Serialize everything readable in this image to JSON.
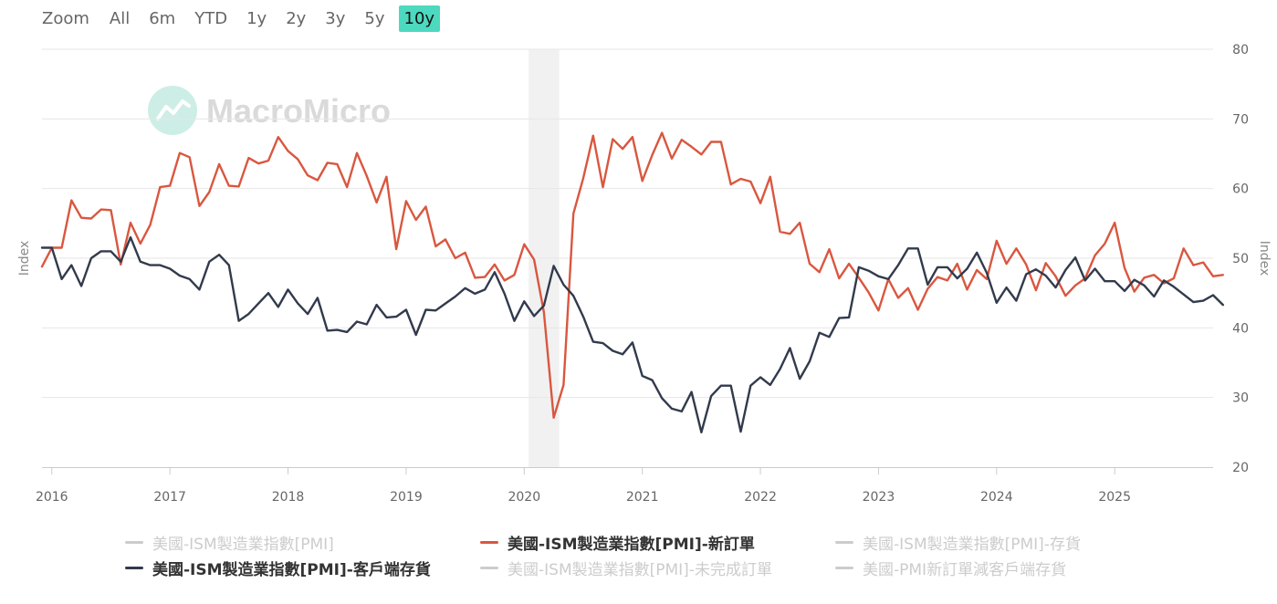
{
  "zoom": {
    "label": "Zoom",
    "buttons": [
      "All",
      "6m",
      "YTD",
      "1y",
      "2y",
      "3y",
      "5y",
      "10y"
    ],
    "active": "10y"
  },
  "watermark": "MacroMicro",
  "colors": {
    "new_orders": "#d9573f",
    "customer_inventories": "#323a4c",
    "recession_band": "#e6e6e6",
    "grid": "#e6e6e6",
    "hidden_legend": "#cccccc",
    "zoom_active": "#4dd9c0"
  },
  "chart_data": {
    "type": "line",
    "x_start": "2015-12",
    "frequency": "monthly",
    "xlim": [
      "2015-12",
      "2025-11"
    ],
    "x_tick_labels": [
      "2016",
      "2017",
      "2018",
      "2019",
      "2020",
      "2021",
      "2022",
      "2023",
      "2024",
      "2025"
    ],
    "y_left": {
      "label": "Index",
      "ticks": []
    },
    "y_right": {
      "label": "Index",
      "ticks": [
        "20",
        "30",
        "40",
        "50",
        "60",
        "70",
        "80"
      ]
    },
    "ylim": [
      20,
      80
    ],
    "grid": true,
    "recession_band": [
      "2020-02",
      "2020-04"
    ],
    "series": [
      {
        "key": "new_orders",
        "name": "美國-ISM製造業指數[PMI]-新訂單",
        "visible": true,
        "values": [
          48.8,
          51.5,
          51.5,
          58.3,
          55.8,
          55.7,
          57.0,
          56.9,
          49.1,
          55.1,
          52.1,
          54.8,
          60.2,
          60.4,
          65.1,
          64.5,
          57.5,
          59.5,
          63.5,
          60.4,
          60.3,
          64.4,
          63.6,
          64.0,
          67.4,
          65.4,
          64.2,
          61.9,
          61.2,
          63.7,
          63.5,
          60.2,
          65.1,
          61.8,
          58.0,
          61.7,
          51.3,
          58.2,
          55.5,
          57.4,
          51.7,
          52.7,
          50.0,
          50.8,
          47.2,
          47.3,
          49.1,
          46.8,
          47.6,
          52.0,
          49.8,
          42.2,
          27.1,
          31.8,
          56.4,
          61.5,
          67.6,
          60.2,
          67.1,
          65.7,
          67.4,
          61.1,
          64.8,
          68.0,
          64.3,
          67.0,
          66.0,
          64.9,
          66.7,
          66.7,
          60.6,
          61.4,
          61.0,
          57.9,
          61.7,
          53.8,
          53.5,
          55.1,
          49.2,
          48.0,
          51.3,
          47.1,
          49.2,
          47.2,
          45.1,
          42.5,
          47.0,
          44.3,
          45.7,
          42.6,
          45.6,
          47.3,
          46.8,
          49.2,
          45.5,
          48.3,
          47.0,
          52.5,
          49.2,
          51.4,
          49.1,
          45.4,
          49.3,
          47.4,
          44.6,
          46.1,
          47.1,
          50.4,
          52.1,
          55.1,
          48.6,
          45.2,
          47.2,
          47.6,
          46.4,
          47.1,
          51.4,
          49.0,
          49.4,
          47.4,
          47.6
        ]
      },
      {
        "key": "customer_inventories",
        "name": "美國-ISM製造業指數[PMI]-客戶端存貨",
        "visible": true,
        "values": [
          51.5,
          51.5,
          47.0,
          49.0,
          46.0,
          50.0,
          51.0,
          51.0,
          49.5,
          53.0,
          49.5,
          49.0,
          49.0,
          48.5,
          47.5,
          47.0,
          45.5,
          49.5,
          50.5,
          49.0,
          41.0,
          42.0,
          43.5,
          45.0,
          43.0,
          45.5,
          43.5,
          42.0,
          44.3,
          39.6,
          39.7,
          39.4,
          40.9,
          40.5,
          43.3,
          41.5,
          41.6,
          42.6,
          39.0,
          42.6,
          42.5,
          43.5,
          44.5,
          45.7,
          44.9,
          45.5,
          48.0,
          44.9,
          41.0,
          43.8,
          41.7,
          43.2,
          48.9,
          46.2,
          44.6,
          41.6,
          38.0,
          37.8,
          36.7,
          36.2,
          37.9,
          33.1,
          32.5,
          29.9,
          28.4,
          28.0,
          30.8,
          25.0,
          30.2,
          31.7,
          31.7,
          25.1,
          31.7,
          32.9,
          31.8,
          34.1,
          37.1,
          32.7,
          35.2,
          39.3,
          38.7,
          41.4,
          41.5,
          48.7,
          48.2,
          47.4,
          47.0,
          49.0,
          51.4,
          51.4,
          46.2,
          48.7,
          48.7,
          47.1,
          48.5,
          50.8,
          47.9,
          43.6,
          45.8,
          43.9,
          47.7,
          48.4,
          47.5,
          45.8,
          48.3,
          50.1,
          46.8,
          48.5,
          46.7,
          46.7,
          45.3,
          46.9,
          46.1,
          44.5,
          46.8,
          45.9,
          44.8,
          43.7,
          43.9,
          44.7,
          43.3
        ]
      },
      {
        "key": "pmi",
        "name": "美國-ISM製造業指數[PMI]",
        "visible": false
      },
      {
        "key": "inventories",
        "name": "美國-ISM製造業指數[PMI]-存貨",
        "visible": false
      },
      {
        "key": "backlog",
        "name": "美國-ISM製造業指數[PMI]-未完成訂單",
        "visible": false
      },
      {
        "key": "spread",
        "name": "美國-PMI新訂單減客戶端存貨",
        "visible": false
      }
    ]
  }
}
